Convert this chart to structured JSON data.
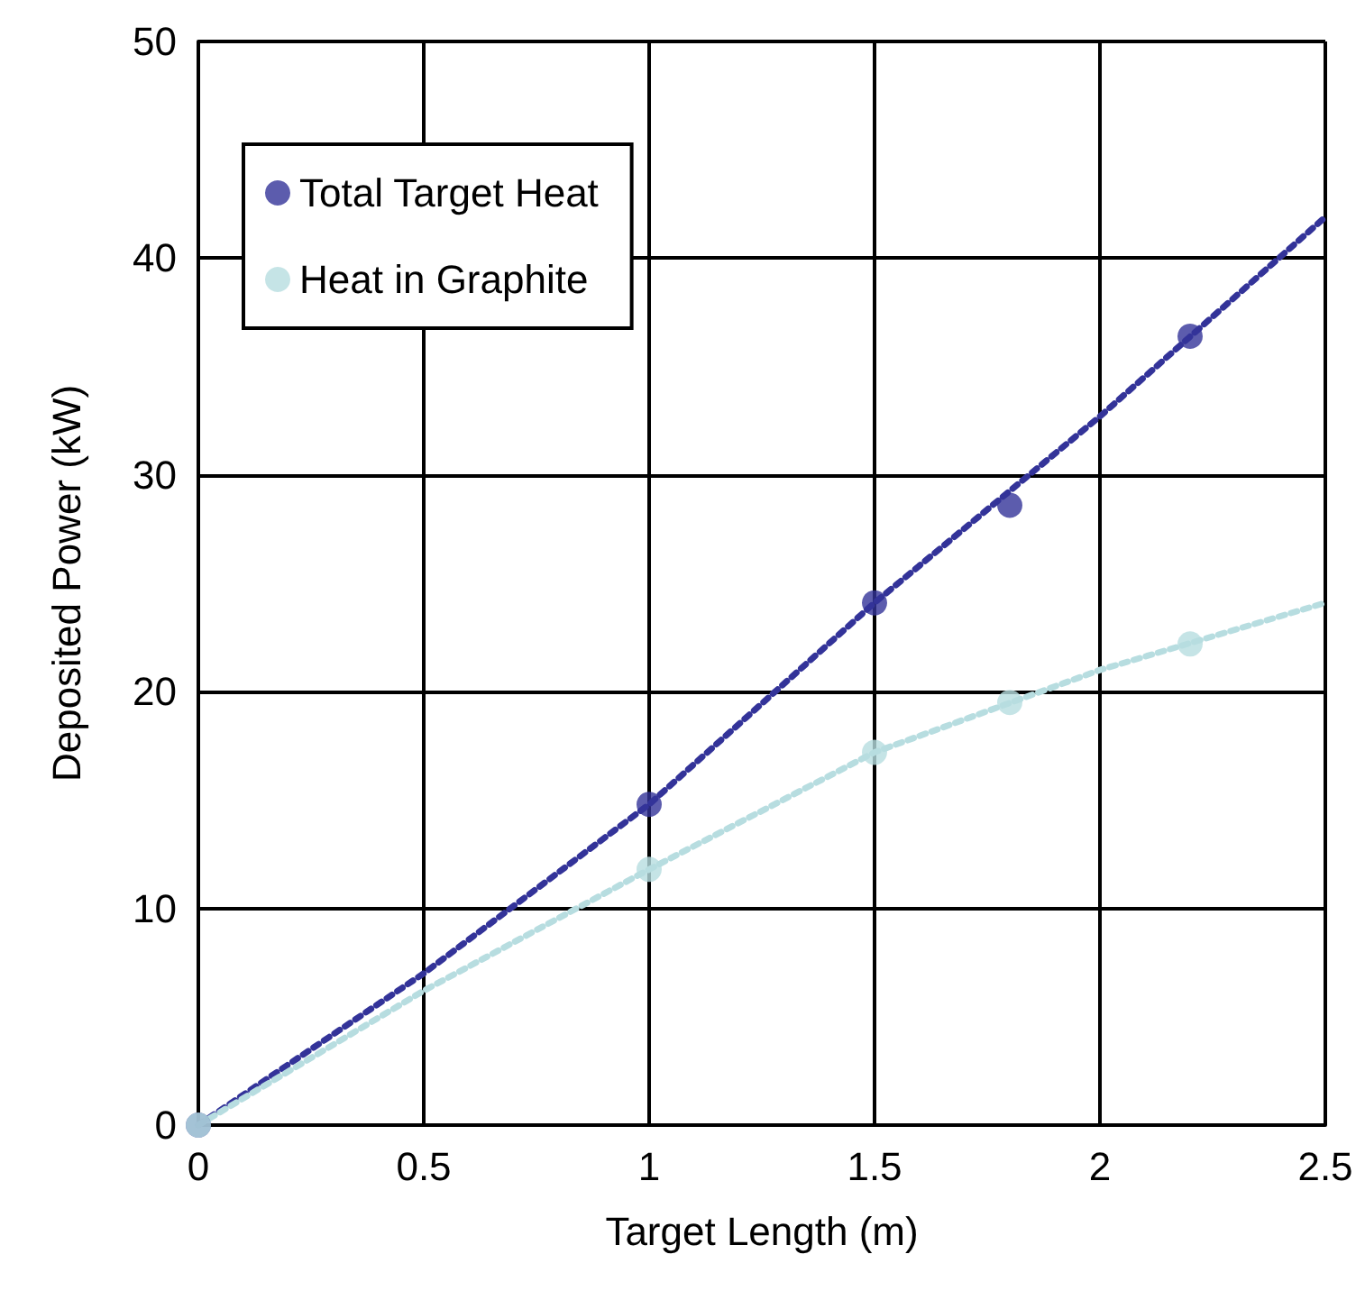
{
  "chart_data": {
    "type": "scatter",
    "xlabel": "Target Length (m)",
    "ylabel": "Deposited Power (kW)",
    "xlim": [
      0,
      2.5
    ],
    "xticks": [
      0,
      0.5,
      1,
      1.5,
      2,
      2.5
    ],
    "ylim": [
      0,
      50
    ],
    "yticks": [
      0,
      10,
      20,
      30,
      40,
      50
    ],
    "grid": true,
    "legend": "top left",
    "marker": "circle",
    "series": [
      {
        "name": "Total Target Heat",
        "color": "#333399",
        "x": [
          0,
          1,
          1.5,
          1.8,
          2.2
        ],
        "values": [
          0,
          14.8,
          24.1,
          28.6,
          36.4
        ]
      },
      {
        "name": "Heat in Graphite",
        "color": "#b7dde0",
        "x": [
          0,
          1,
          1.5,
          1.8,
          2.2
        ],
        "values": [
          0,
          11.8,
          17.2,
          19.5,
          22.2
        ]
      },
      {
        "type": "line",
        "color": "#333399",
        "line_style": "dotted",
        "marker": "none",
        "x": [
          0,
          0.5,
          1,
          1.5,
          2,
          2.5
        ],
        "values": [
          0,
          7.0,
          14.8,
          24.1,
          32.7,
          41.9
        ]
      },
      {
        "type": "line",
        "color": "#b7dde0",
        "line_style": "dotted",
        "marker": "none",
        "x": [
          0,
          0.5,
          1,
          1.5,
          2,
          2.5
        ],
        "values": [
          0,
          6.2,
          11.8,
          17.2,
          21.0,
          24.1
        ]
      }
    ]
  }
}
